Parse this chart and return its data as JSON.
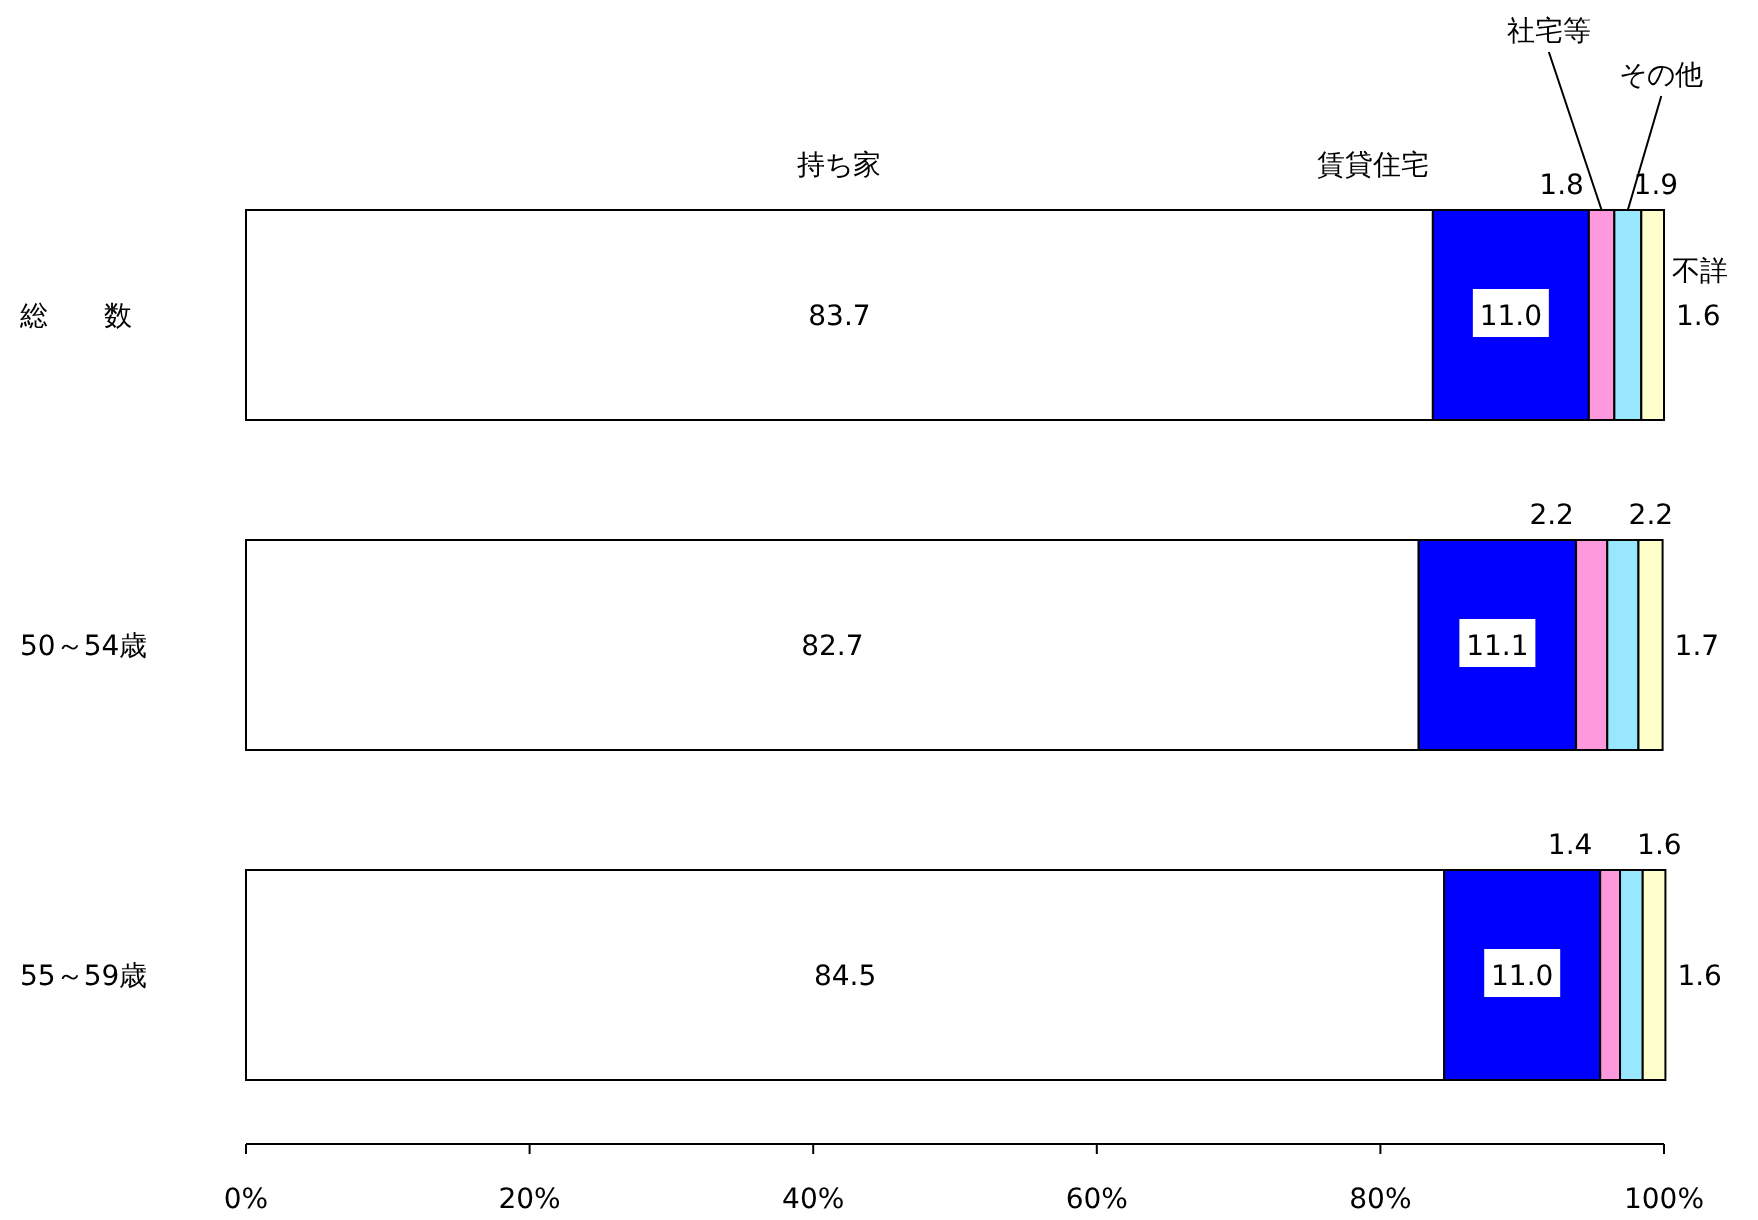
{
  "chart_data": {
    "type": "bar",
    "orientation": "horizontal",
    "stacked": true,
    "grid": false,
    "categories": [
      "総　　数",
      "50～54歳",
      "55～59歳"
    ],
    "series": [
      {
        "name": "持ち家",
        "color": "#ffffff",
        "values": [
          83.7,
          82.7,
          84.5
        ],
        "value_labels": [
          "83.7",
          "82.7",
          "84.5"
        ]
      },
      {
        "name": "賃貸住宅",
        "color": "#0000ff",
        "values": [
          11.0,
          11.1,
          11.0
        ],
        "value_labels": [
          "11.0",
          "11.1",
          "11.0"
        ]
      },
      {
        "name": "社宅等",
        "color": "#ff99dd",
        "values": [
          1.8,
          2.2,
          1.4
        ],
        "value_labels": [
          "1.8",
          "2.2",
          "1.4"
        ]
      },
      {
        "name": "その他",
        "color": "#99e6ff",
        "values": [
          1.9,
          2.2,
          1.6
        ],
        "value_labels": [
          "1.9",
          "2.2",
          "1.6"
        ]
      },
      {
        "name": "不詳",
        "color": "#ffffcc",
        "values": [
          1.6,
          1.7,
          1.6
        ],
        "value_labels": [
          "1.6",
          "1.7",
          "1.6"
        ]
      }
    ],
    "xlim": [
      0,
      100
    ],
    "xticks": [
      {
        "value": 0,
        "label": "0%"
      },
      {
        "value": 20,
        "label": "20%"
      },
      {
        "value": 40,
        "label": "40%"
      },
      {
        "value": 60,
        "label": "60%"
      },
      {
        "value": 80,
        "label": "80%"
      },
      {
        "value": 100,
        "label": "100%"
      }
    ]
  }
}
